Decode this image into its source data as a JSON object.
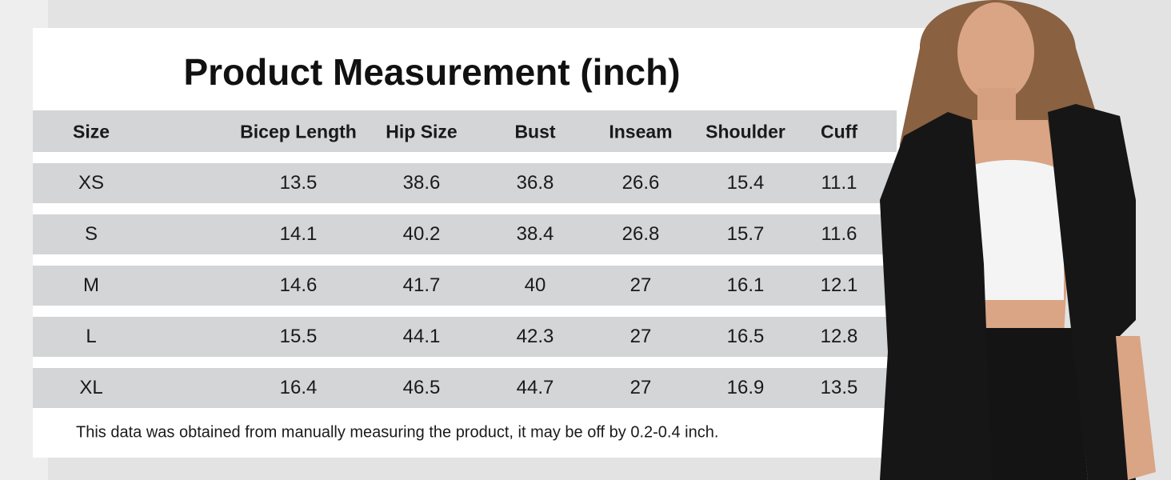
{
  "header": {
    "title": "Product Measurement (inch)"
  },
  "table": {
    "columns": [
      "Size",
      "Bicep Length",
      "Hip Size",
      "Bust",
      "Inseam",
      "Shoulder",
      "Cuff"
    ],
    "rows": [
      [
        "XS",
        "13.5",
        "38.6",
        "36.8",
        "26.6",
        "15.4",
        "11.1"
      ],
      [
        "S",
        "14.1",
        "40.2",
        "38.4",
        "26.8",
        "15.7",
        "11.6"
      ],
      [
        "M",
        "14.6",
        "41.7",
        "40",
        "27",
        "16.1",
        "12.1"
      ],
      [
        "L",
        "15.5",
        "44.1",
        "42.3",
        "27",
        "16.5",
        "12.8"
      ],
      [
        "XL",
        "16.4",
        "46.5",
        "44.7",
        "27",
        "16.9",
        "13.5"
      ]
    ]
  },
  "note": "This data was obtained from manually measuring the product, it may be off by 0.2-0.4 inch."
}
